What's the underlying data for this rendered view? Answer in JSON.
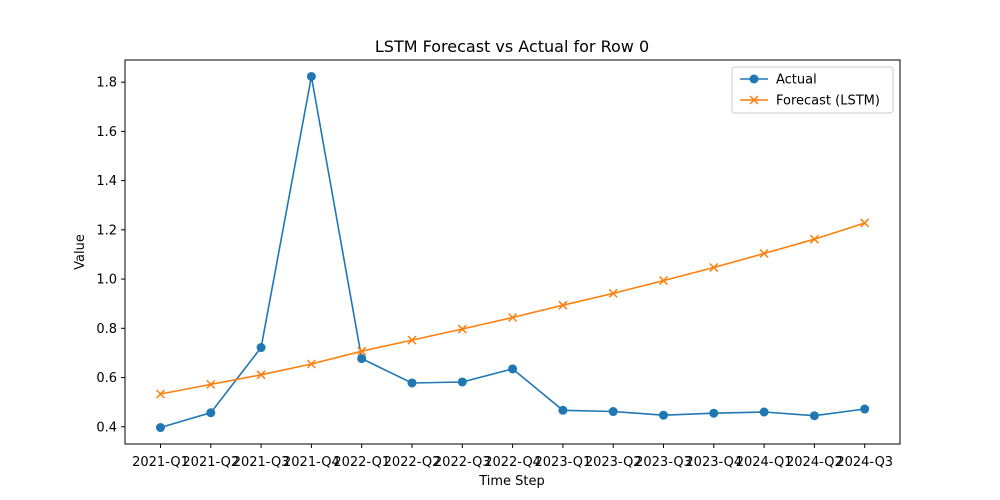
{
  "chart_data": {
    "type": "line",
    "title": "LSTM Forecast vs Actual for Row 0",
    "xlabel": "Time Step",
    "ylabel": "Value",
    "categories": [
      "2021-Q1",
      "2021-Q2",
      "2021-Q3",
      "2021-Q4",
      "2022-Q1",
      "2022-Q2",
      "2022-Q3",
      "2022-Q4",
      "2023-Q1",
      "2023-Q2",
      "2023-Q3",
      "2023-Q4",
      "2024-Q1",
      "2024-Q2",
      "2024-Q3"
    ],
    "yticks": [
      "0.4",
      "0.6",
      "0.8",
      "1.0",
      "1.2",
      "1.4",
      "1.6",
      "1.8"
    ],
    "ylim": [
      0.33,
      1.89
    ],
    "grid": false,
    "legend_position": "top-right",
    "series": [
      {
        "name": "Actual",
        "color": "#1f77b4",
        "marker": "circle",
        "values": [
          0.397,
          0.457,
          0.722,
          1.823,
          0.677,
          0.578,
          0.582,
          0.635,
          0.467,
          0.462,
          0.447,
          0.455,
          0.46,
          0.445,
          0.472
        ]
      },
      {
        "name": "Forecast (LSTM)",
        "color": "#ff7f0e",
        "marker": "x",
        "values": [
          0.533,
          0.572,
          0.611,
          0.655,
          0.707,
          0.752,
          0.797,
          0.844,
          0.894,
          0.942,
          0.994,
          1.047,
          1.104,
          1.162,
          1.228
        ]
      }
    ]
  }
}
